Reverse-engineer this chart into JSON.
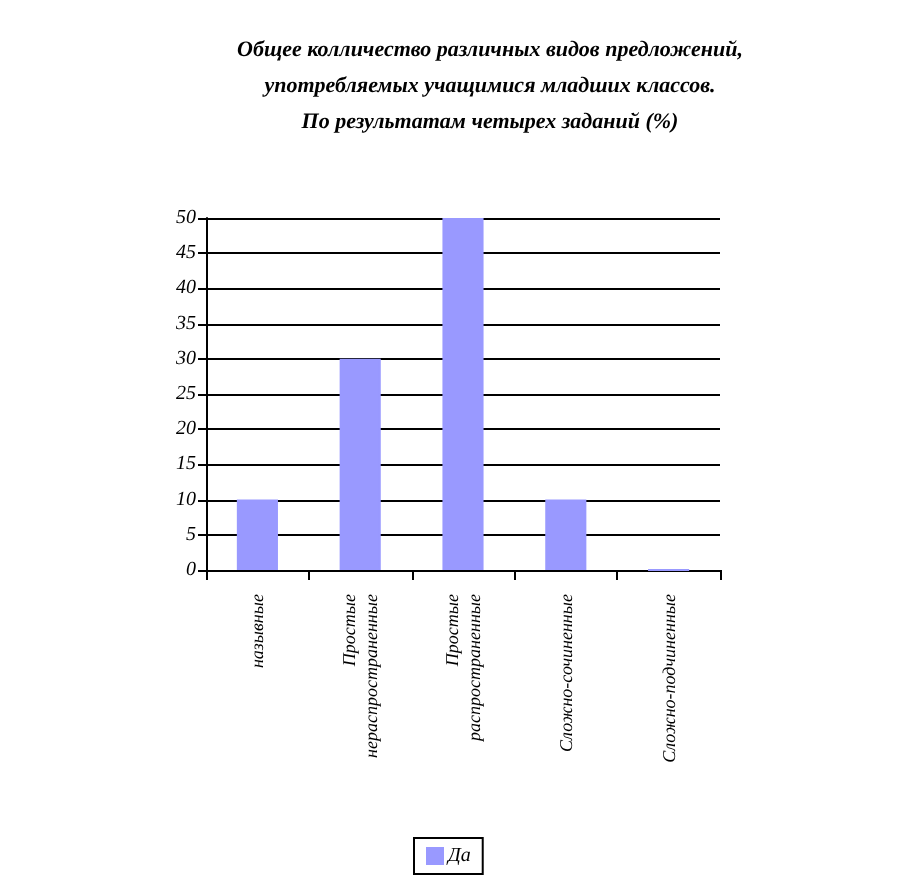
{
  "chart_data": {
    "type": "bar",
    "title": "Общее колличество различных видов предложений,\nупотребляемых учащимися младших классов.\nПо результатам четырех заданий (%)",
    "categories": [
      "назывные",
      "Простые нераспространенные",
      "Простые распространенные",
      "Сложно-сочиненные",
      "Сложно-подчиненные"
    ],
    "series": [
      {
        "name": "Да",
        "color": "#9999ff",
        "values": [
          10,
          30,
          50,
          10,
          0
        ]
      }
    ],
    "ylim": [
      0,
      50
    ],
    "yticks": [
      0,
      5,
      10,
      15,
      20,
      25,
      30,
      35,
      40,
      45,
      50
    ],
    "grid": "y",
    "legend": "bottom"
  }
}
